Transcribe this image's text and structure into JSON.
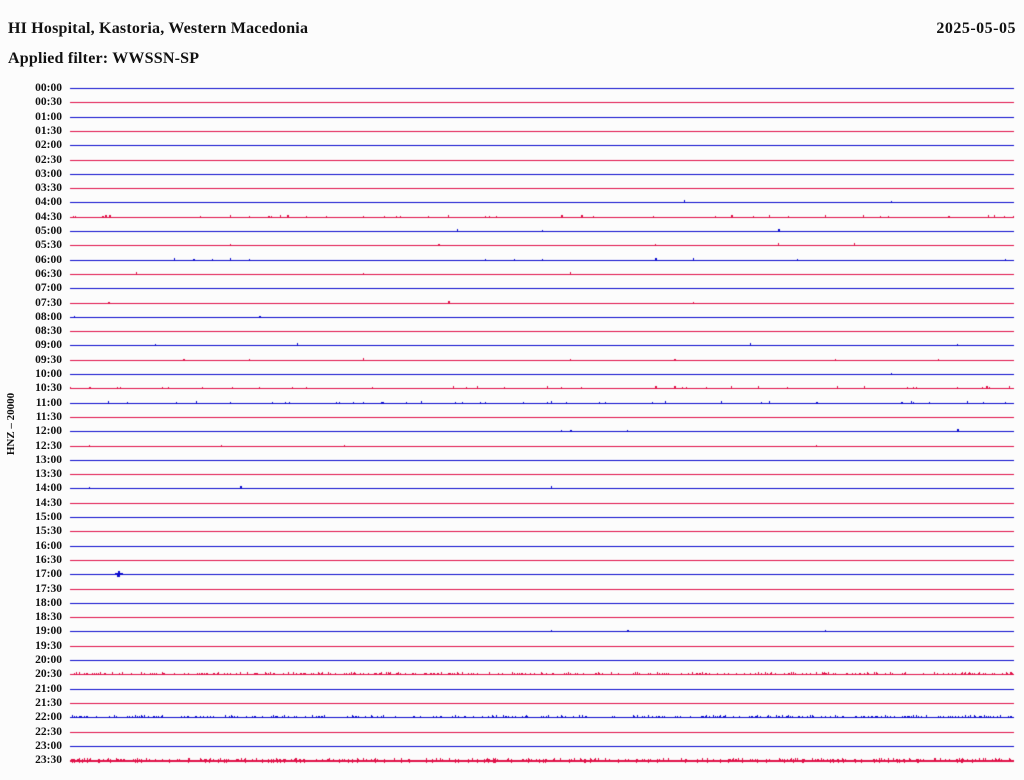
{
  "header": {
    "station_title": "HI Hospital, Kastoria, Western Macedonia",
    "date": "2025-05-05",
    "filter_line": "Applied filter: WWSSN-SP"
  },
  "axis": {
    "left_label": "HNZ – 20000"
  },
  "palette": {
    "blue_trace": "#0a0ace",
    "red_trace": "#e01048",
    "text": "#111111",
    "background": "#fcfcfc"
  },
  "chart_data": {
    "type": "line",
    "subtype": "helicorder-daily-seismogram",
    "station": "HI Hospital, Kastoria, Western Macedonia",
    "date": "2025-05-05",
    "filter": "WWSSN-SP",
    "channel_scale_label": "HNZ – 20000",
    "row_interval_minutes": 30,
    "trace_color_alternation": [
      "blue",
      "red"
    ],
    "rows": [
      {
        "time": "00:00",
        "color": "blue",
        "activity": "quiet",
        "spikes": []
      },
      {
        "time": "00:30",
        "color": "red",
        "activity": "quiet",
        "spikes": []
      },
      {
        "time": "01:00",
        "color": "blue",
        "activity": "quiet",
        "spikes": []
      },
      {
        "time": "01:30",
        "color": "red",
        "activity": "quiet",
        "spikes": []
      },
      {
        "time": "02:00",
        "color": "blue",
        "activity": "quiet",
        "spikes": []
      },
      {
        "time": "02:30",
        "color": "red",
        "activity": "quiet",
        "spikes": []
      },
      {
        "time": "03:00",
        "color": "blue",
        "activity": "quiet",
        "spikes": []
      },
      {
        "time": "03:30",
        "color": "red",
        "activity": "quiet",
        "spikes": []
      },
      {
        "time": "04:00",
        "color": "blue",
        "activity": "few",
        "spikes": [
          0.65,
          0.87
        ]
      },
      {
        "time": "04:30",
        "color": "red",
        "activity": "sparse",
        "spikes": [
          0.034,
          0.037,
          0.041,
          0.17,
          0.19,
          0.21,
          0.23,
          0.25,
          0.31,
          0.35,
          0.4,
          0.52,
          0.7,
          0.74,
          0.8,
          0.93
        ]
      },
      {
        "time": "05:00",
        "color": "blue",
        "activity": "few",
        "spikes": [
          0.41,
          0.5,
          0.75
        ]
      },
      {
        "time": "05:30",
        "color": "red",
        "activity": "few",
        "spikes": [
          0.17,
          0.39,
          0.62,
          0.75,
          0.83
        ]
      },
      {
        "time": "06:00",
        "color": "blue",
        "activity": "few",
        "spikes": [
          0.11,
          0.13,
          0.15,
          0.17,
          0.19,
          0.44,
          0.47,
          0.5,
          0.62,
          0.66,
          0.77,
          0.99
        ]
      },
      {
        "time": "06:30",
        "color": "red",
        "activity": "few",
        "spikes": [
          0.07,
          0.31,
          0.53
        ]
      },
      {
        "time": "07:00",
        "color": "blue",
        "activity": "quiet",
        "spikes": []
      },
      {
        "time": "07:30",
        "color": "red",
        "activity": "few",
        "spikes": [
          0.04,
          0.4,
          0.66
        ]
      },
      {
        "time": "08:00",
        "color": "blue",
        "activity": "few",
        "spikes": [
          0.004,
          0.2
        ]
      },
      {
        "time": "08:30",
        "color": "red",
        "activity": "quiet",
        "spikes": []
      },
      {
        "time": "09:00",
        "color": "blue",
        "activity": "few",
        "spikes": [
          0.09,
          0.24,
          0.72,
          0.94
        ]
      },
      {
        "time": "09:30",
        "color": "red",
        "activity": "few",
        "spikes": [
          0.12,
          0.19,
          0.31,
          0.53,
          0.64,
          0.81,
          0.92
        ]
      },
      {
        "time": "10:00",
        "color": "blue",
        "activity": "few",
        "spikes": [
          0.87
        ]
      },
      {
        "time": "10:30",
        "color": "red",
        "activity": "sparse",
        "spikes": [
          0.02,
          0.05,
          0.14,
          0.2,
          0.42,
          0.52,
          0.62,
          0.64,
          0.7,
          0.94,
          0.97
        ]
      },
      {
        "time": "11:00",
        "color": "blue",
        "activity": "sparse",
        "spikes": [
          0.04,
          0.06,
          0.17,
          0.3,
          0.31,
          0.33,
          0.44,
          0.48,
          0.51,
          0.56,
          0.63,
          0.69,
          0.74,
          0.88,
          0.95,
          0.99
        ]
      },
      {
        "time": "11:30",
        "color": "red",
        "activity": "quiet",
        "spikes": []
      },
      {
        "time": "12:00",
        "color": "blue",
        "activity": "few",
        "spikes": [
          0.52,
          0.53,
          0.59,
          0.94
        ]
      },
      {
        "time": "12:30",
        "color": "red",
        "activity": "few",
        "spikes": [
          0.02,
          0.16,
          0.29,
          0.79
        ]
      },
      {
        "time": "13:00",
        "color": "blue",
        "activity": "quiet",
        "spikes": []
      },
      {
        "time": "13:30",
        "color": "red",
        "activity": "quiet",
        "spikes": []
      },
      {
        "time": "14:00",
        "color": "blue",
        "activity": "few",
        "spikes": [
          0.02,
          0.18,
          0.51
        ]
      },
      {
        "time": "14:30",
        "color": "red",
        "activity": "quiet",
        "spikes": []
      },
      {
        "time": "15:00",
        "color": "blue",
        "activity": "quiet",
        "spikes": []
      },
      {
        "time": "15:30",
        "color": "red",
        "activity": "quiet",
        "spikes": []
      },
      {
        "time": "16:00",
        "color": "blue",
        "activity": "quiet",
        "spikes": []
      },
      {
        "time": "16:30",
        "color": "red",
        "activity": "quiet",
        "spikes": []
      },
      {
        "time": "17:00",
        "color": "blue",
        "activity": "event",
        "spikes": [
          0.051
        ]
      },
      {
        "time": "17:30",
        "color": "red",
        "activity": "quiet",
        "spikes": []
      },
      {
        "time": "18:00",
        "color": "blue",
        "activity": "quiet",
        "spikes": []
      },
      {
        "time": "18:30",
        "color": "red",
        "activity": "quiet",
        "spikes": []
      },
      {
        "time": "19:00",
        "color": "blue",
        "activity": "few",
        "spikes": [
          0.51,
          0.59,
          0.8
        ]
      },
      {
        "time": "19:30",
        "color": "red",
        "activity": "quiet",
        "spikes": []
      },
      {
        "time": "20:00",
        "color": "blue",
        "activity": "quiet",
        "spikes": []
      },
      {
        "time": "20:30",
        "color": "red",
        "activity": "dense",
        "spikes": []
      },
      {
        "time": "21:00",
        "color": "blue",
        "activity": "quiet",
        "spikes": []
      },
      {
        "time": "21:30",
        "color": "red",
        "activity": "quiet",
        "spikes": []
      },
      {
        "time": "22:00",
        "color": "blue",
        "activity": "dense",
        "spikes": []
      },
      {
        "time": "22:30",
        "color": "red",
        "activity": "quiet",
        "spikes": []
      },
      {
        "time": "23:00",
        "color": "blue",
        "activity": "quiet",
        "spikes": []
      },
      {
        "time": "23:30",
        "color": "red",
        "activity": "dense-thick",
        "spikes": []
      }
    ]
  }
}
